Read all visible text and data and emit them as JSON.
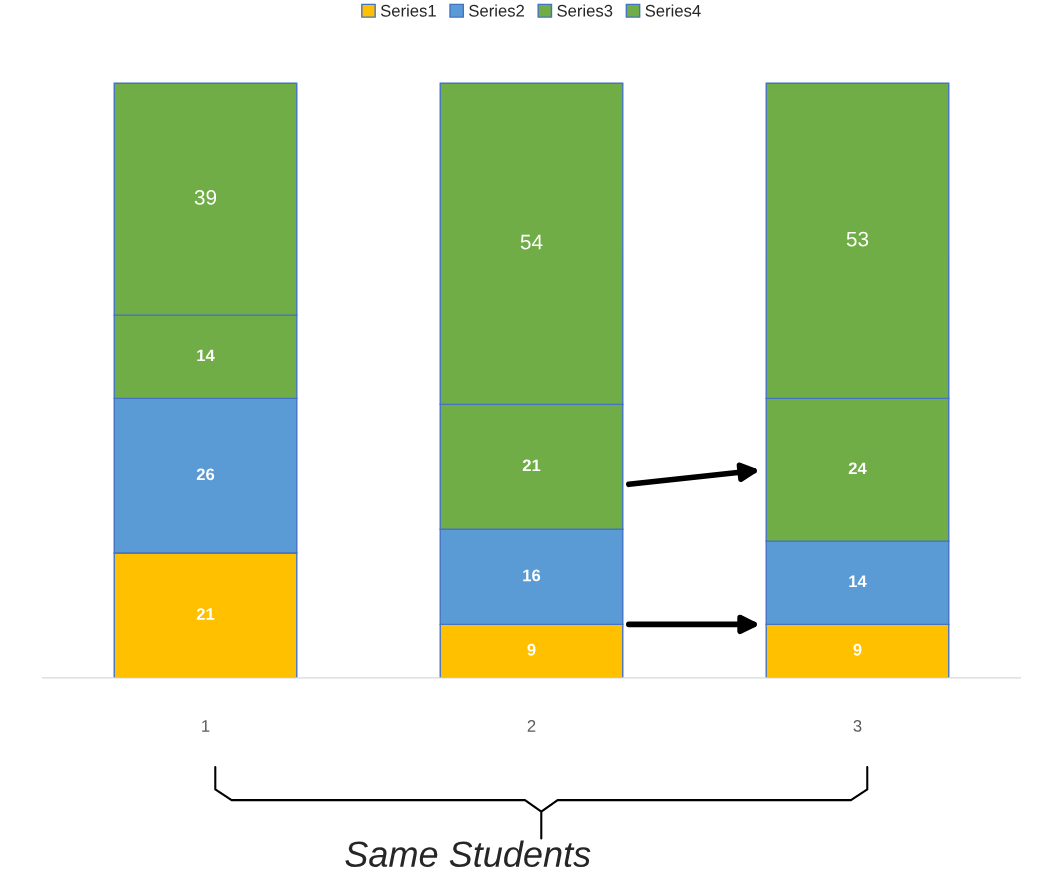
{
  "chart_data": {
    "type": "bar",
    "stacked": true,
    "categories": [
      "1",
      "2",
      "3"
    ],
    "series": [
      {
        "name": "Series1",
        "color": "#ffc000",
        "values": [
          21,
          9,
          9
        ]
      },
      {
        "name": "Series2",
        "color": "#5b9bd5",
        "values": [
          26,
          16,
          14
        ]
      },
      {
        "name": "Series3",
        "color": "#70ad47",
        "values": [
          14,
          21,
          24
        ]
      },
      {
        "name": "Series4",
        "color": "#70ad47",
        "values": [
          39,
          54,
          53
        ]
      }
    ],
    "data_labels": true,
    "legend": "top",
    "grid": false,
    "tick_labels": "x",
    "annotations": [
      "Same Students"
    ]
  }
}
